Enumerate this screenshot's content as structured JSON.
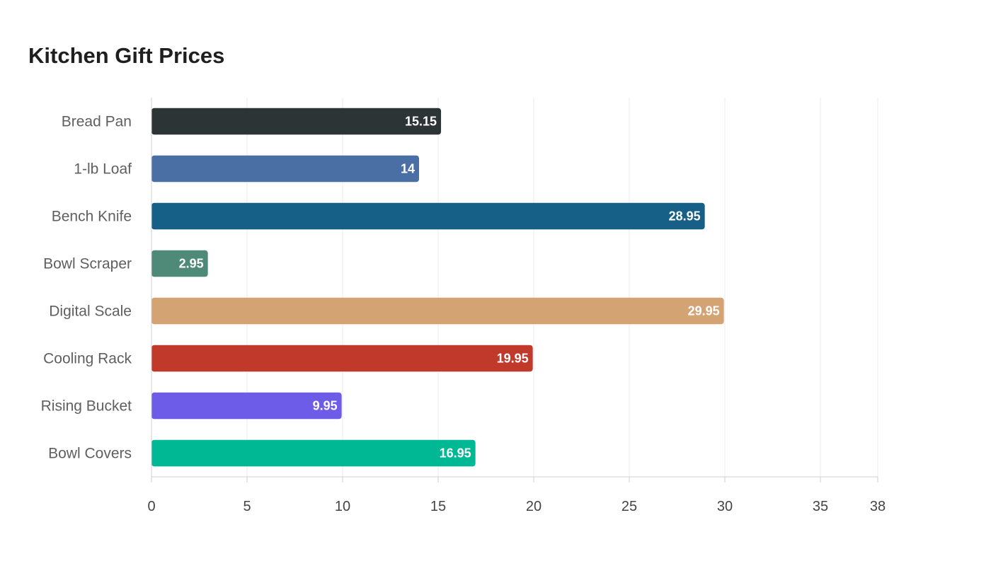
{
  "chart_data": {
    "type": "bar",
    "orientation": "horizontal",
    "title": "Kitchen Gift Prices",
    "xlabel": "",
    "ylabel": "",
    "categories": [
      "Bread Pan",
      "1-lb Loaf",
      "Bench Knife",
      "Bowl Scraper",
      "Digital Scale",
      "Cooling Rack",
      "Rising Bucket",
      "Bowl Covers"
    ],
    "values": [
      15.15,
      14,
      28.95,
      2.95,
      29.95,
      19.95,
      9.95,
      16.95
    ],
    "colors": [
      "#2d3436",
      "#4a6fa5",
      "#166088",
      "#4f8a79",
      "#d4a373",
      "#c0392b",
      "#6c5ce7",
      "#00b894"
    ],
    "xlim": [
      0,
      38
    ],
    "xticks": [
      0,
      5,
      10,
      15,
      20,
      25,
      30,
      35,
      38
    ],
    "grid": true,
    "legend": "none"
  }
}
